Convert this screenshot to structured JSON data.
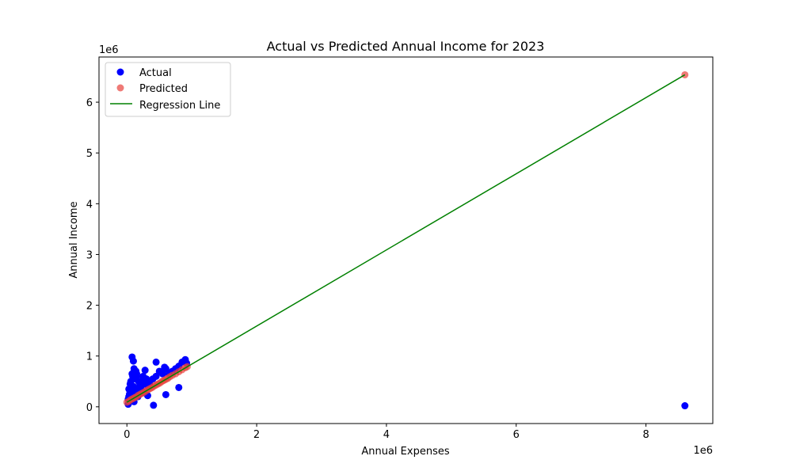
{
  "chart_data": {
    "type": "scatter",
    "title": "Actual vs Predicted Annual Income for 2023",
    "xlabel": "Annual Expenses",
    "ylabel": "Annual Income",
    "x_offset_label": "1e6",
    "y_offset_label": "1e6",
    "xlim": [
      -0.43,
      9.03
    ],
    "ylim": [
      -0.33,
      6.89
    ],
    "x_unit_multiplier": 1000000,
    "y_unit_multiplier": 1000000,
    "x_ticks": [
      0,
      2,
      4,
      6,
      8
    ],
    "y_ticks": [
      0,
      1,
      2,
      3,
      4,
      5,
      6
    ],
    "x_tick_labels": [
      "0",
      "2",
      "4",
      "6",
      "8"
    ],
    "y_tick_labels": [
      "0",
      "1",
      "2",
      "3",
      "4",
      "5",
      "6"
    ],
    "grid": false,
    "legend_position": "top-left",
    "legend": [
      "Actual",
      "Predicted",
      "Regression Line"
    ],
    "colors": {
      "actual": "#0000ff",
      "predicted": "#e8413c",
      "regression": "#008000"
    },
    "regression": {
      "slope": 0.75,
      "intercept": 0.09,
      "x_range": [
        0.0,
        8.6
      ]
    },
    "series": [
      {
        "name": "Actual",
        "x": [
          0.02,
          0.03,
          0.05,
          0.06,
          0.04,
          0.08,
          0.1,
          0.12,
          0.07,
          0.09,
          0.11,
          0.14,
          0.15,
          0.18,
          0.2,
          0.22,
          0.25,
          0.28,
          0.3,
          0.33,
          0.35,
          0.4,
          0.45,
          0.5,
          0.55,
          0.6,
          0.65,
          0.7,
          0.75,
          0.8,
          0.85,
          0.9,
          0.92,
          0.05,
          0.08,
          0.1,
          0.13,
          0.16,
          0.07,
          0.12,
          0.19,
          0.24,
          0.03,
          0.06,
          0.09,
          0.15,
          0.21,
          0.27,
          0.45,
          0.58,
          0.41,
          0.6,
          0.8,
          0.02,
          0.04,
          0.11,
          0.17,
          0.26,
          0.32,
          8.6
        ],
        "y": [
          0.05,
          0.2,
          0.3,
          0.5,
          0.1,
          0.65,
          0.4,
          0.55,
          0.25,
          0.3,
          0.75,
          0.7,
          0.6,
          0.5,
          0.45,
          0.35,
          0.6,
          0.72,
          0.55,
          0.4,
          0.45,
          0.55,
          0.6,
          0.7,
          0.65,
          0.75,
          0.65,
          0.7,
          0.75,
          0.8,
          0.88,
          0.93,
          0.86,
          0.45,
          0.98,
          0.9,
          0.55,
          0.35,
          0.15,
          0.2,
          0.25,
          0.3,
          0.35,
          0.4,
          0.6,
          0.65,
          0.5,
          0.45,
          0.88,
          0.78,
          0.03,
          0.24,
          0.38,
          0.15,
          0.25,
          0.1,
          0.2,
          0.28,
          0.22,
          0.02
        ]
      },
      {
        "name": "Predicted",
        "x": [
          0.0,
          0.03,
          0.06,
          0.09,
          0.12,
          0.15,
          0.18,
          0.21,
          0.24,
          0.27,
          0.3,
          0.33,
          0.36,
          0.39,
          0.42,
          0.45,
          0.48,
          0.51,
          0.54,
          0.57,
          0.6,
          0.63,
          0.66,
          0.7,
          0.75,
          0.8,
          0.85,
          0.9,
          0.93,
          8.6
        ],
        "y": [
          0.09,
          0.11,
          0.14,
          0.16,
          0.18,
          0.2,
          0.23,
          0.25,
          0.27,
          0.29,
          0.32,
          0.34,
          0.36,
          0.38,
          0.41,
          0.43,
          0.45,
          0.47,
          0.5,
          0.52,
          0.54,
          0.56,
          0.59,
          0.62,
          0.65,
          0.69,
          0.73,
          0.77,
          0.79,
          6.54
        ]
      }
    ]
  }
}
